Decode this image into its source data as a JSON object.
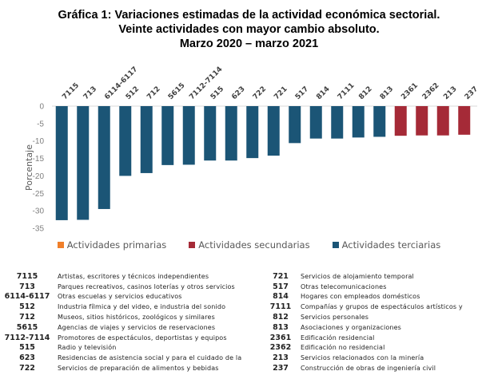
{
  "title_lines": [
    "Gráfica 1: Variaciones estimadas de la actividad económica sectorial.",
    "Veinte actividades con mayor cambio absoluto.",
    "Marzo 2020 – marzo 2021"
  ],
  "colors": {
    "primarias": "#f07f2a",
    "secundarias": "#a52a37",
    "terciarias": "#1b5576"
  },
  "chart_data": {
    "type": "bar",
    "title": "Gráfica 1: Variaciones estimadas de la actividad económica sectorial. Veinte actividades con mayor cambio absoluto. Marzo 2020 – marzo 2021",
    "xlabel": "",
    "ylabel": "Porcentaje",
    "ylim": [
      -35,
      0
    ],
    "yticks": [
      0,
      -5,
      -10,
      -15,
      -20,
      -25,
      -30,
      -35
    ],
    "grid": false,
    "legend_position": "bottom",
    "categories": [
      "7115",
      "713",
      "6114-6117",
      "512",
      "712",
      "5615",
      "7112-7114",
      "515",
      "623",
      "722",
      "721",
      "517",
      "814",
      "7111",
      "812",
      "813",
      "2361",
      "2362",
      "213",
      "237"
    ],
    "values": [
      -32.7,
      -32.6,
      -29.5,
      -20.0,
      -19.2,
      -16.9,
      -16.8,
      -15.6,
      -15.6,
      -14.9,
      -14.2,
      -10.6,
      -9.3,
      -9.3,
      -9.0,
      -8.8,
      -8.5,
      -8.4,
      -8.4,
      -8.2
    ],
    "sector": [
      "terciarias",
      "terciarias",
      "terciarias",
      "terciarias",
      "terciarias",
      "terciarias",
      "terciarias",
      "terciarias",
      "terciarias",
      "terciarias",
      "terciarias",
      "terciarias",
      "terciarias",
      "terciarias",
      "terciarias",
      "terciarias",
      "secundarias",
      "secundarias",
      "secundarias",
      "secundarias"
    ],
    "legend": [
      {
        "key": "primarias",
        "label": "Actividades primarias"
      },
      {
        "key": "secundarias",
        "label": "Actividades secundarias"
      },
      {
        "key": "terciarias",
        "label": "Actividades terciarias"
      }
    ]
  },
  "codes_left": [
    {
      "code": "7115",
      "desc": "Artistas, escritores y técnicos independientes"
    },
    {
      "code": "713",
      "desc": "Parques recreativos, casinos loterías y otros servicios"
    },
    {
      "code": "6114-6117",
      "desc": "Otras escuelas y servicios educativos"
    },
    {
      "code": "512",
      "desc": "Industria fílmica y del video, e industria del sonido"
    },
    {
      "code": "712",
      "desc": "Museos, sitios históricos, zoológicos y similares"
    },
    {
      "code": "5615",
      "desc": "Agencias de viajes y servicios de reservaciones"
    },
    {
      "code": "7112-7114",
      "desc": "Promotores de espectáculos, deportistas y equipos"
    },
    {
      "code": "515",
      "desc": "Radio y televisión"
    },
    {
      "code": "623",
      "desc": "Residencias de asistencia social y para el cuidado de la"
    },
    {
      "code": "722",
      "desc": "Servicios de preparación de alimentos y bebidas"
    }
  ],
  "codes_right": [
    {
      "code": "721",
      "desc": "Servicios de alojamiento temporal"
    },
    {
      "code": "517",
      "desc": "Otras telecomunicaciones"
    },
    {
      "code": "814",
      "desc": "Hogares con empleados domésticos"
    },
    {
      "code": "7111",
      "desc": "Compañías y grupos de espectáculos artísticos y"
    },
    {
      "code": "812",
      "desc": "Servicios personales"
    },
    {
      "code": "813",
      "desc": "Asociaciones y organizaciones"
    },
    {
      "code": "2361",
      "desc": "Edificación residencial"
    },
    {
      "code": "2362",
      "desc": "Edificación no residencial"
    },
    {
      "code": "213",
      "desc": "Servicios relacionados con la minería"
    },
    {
      "code": "237",
      "desc": "Construcción de obras de ingeniería civil"
    }
  ]
}
